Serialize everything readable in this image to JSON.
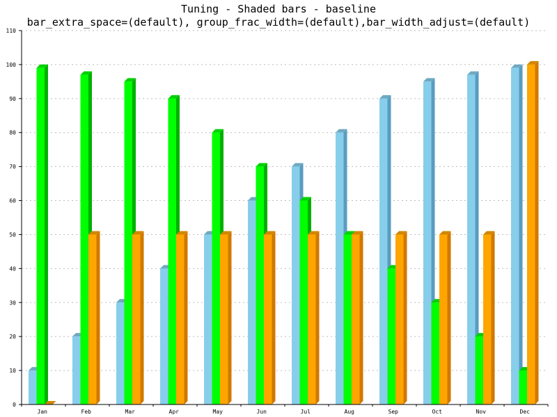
{
  "chart_data": {
    "type": "bar",
    "title": "Tuning - Shaded bars - baseline",
    "subtitle": "bar_extra_space=(default), group_frac_width=(default),bar_width_adjust=(default)",
    "xlabel": "",
    "ylabel": "",
    "ylim": [
      0,
      110
    ],
    "yticks": [
      0,
      10,
      20,
      30,
      40,
      50,
      60,
      70,
      80,
      90,
      100,
      110
    ],
    "grid": true,
    "legend": "none",
    "style": "3d-shaded",
    "categories": [
      "Jan",
      "Feb",
      "Mar",
      "Apr",
      "May",
      "Jun",
      "Jul",
      "Aug",
      "Sep",
      "Oct",
      "Nov",
      "Dec"
    ],
    "series": [
      {
        "color": "#87ceeb",
        "side_color": "#5a9cc0",
        "values": [
          10,
          20,
          30,
          40,
          50,
          60,
          70,
          80,
          90,
          95,
          97,
          99
        ]
      },
      {
        "color": "#00ff00",
        "side_color": "#00b000",
        "values": [
          99,
          97,
          95,
          90,
          80,
          70,
          60,
          50,
          40,
          30,
          20,
          10
        ]
      },
      {
        "color": "#ffa500",
        "side_color": "#d07800",
        "values": [
          0,
          50,
          50,
          50,
          50,
          50,
          50,
          50,
          50,
          50,
          50,
          100
        ]
      }
    ]
  }
}
